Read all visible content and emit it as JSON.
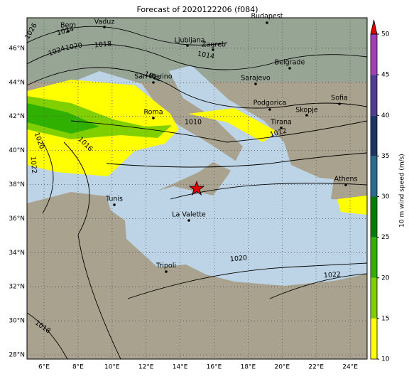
{
  "title": "Forecast of 2020122206 (f084)",
  "map": {
    "lon_ticks": [
      "6°E",
      "8°E",
      "10°E",
      "12°E",
      "14°E",
      "16°E",
      "18°E",
      "20°E",
      "22°E",
      "24°E"
    ],
    "lat_ticks": [
      "28°N",
      "30°N",
      "32°N",
      "34°N",
      "36°N",
      "38°N",
      "40°N",
      "42°N",
      "44°N",
      "46°N"
    ],
    "marker_color": "#e00000"
  },
  "cities": [
    "Bern",
    "Vaduz",
    "Budapest",
    "Ljubljana",
    "Zagreb",
    "Belgrade",
    "Sarajevo",
    "San Marino",
    "Roma",
    "Podgorica",
    "Skopje",
    "Sofia",
    "Tirana",
    "Athens",
    "Tunis",
    "La Valette",
    "Tripoli"
  ],
  "isobar_labels": [
    "1026",
    "1024",
    "1020",
    "1018",
    "1014",
    "1012",
    "1010",
    "1020",
    "1016",
    "1022",
    "1020",
    "1022",
    "1018",
    "1012",
    "1024"
  ],
  "colorbar": {
    "label": "10 m wind speed (m/s)",
    "ticks": [
      10,
      15,
      20,
      25,
      30,
      35,
      40,
      45,
      50
    ],
    "colors": [
      "#ffff00",
      "#80d000",
      "#30b000",
      "#008000",
      "#2a6a90",
      "#1c3566",
      "#503c90",
      "#a040b8"
    ],
    "extend_color": "#e00000"
  }
}
